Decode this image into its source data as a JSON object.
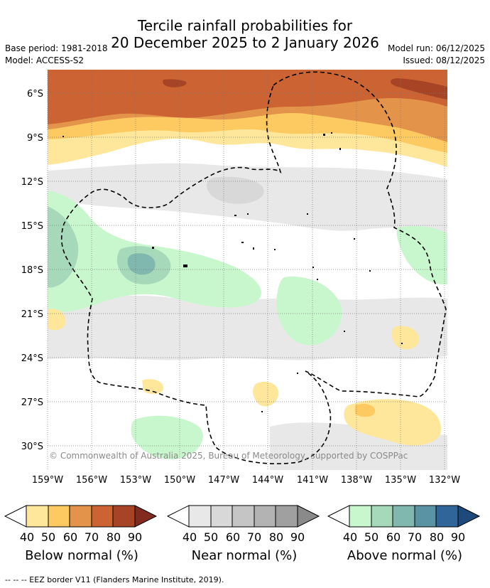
{
  "header": {
    "title_line1": "Tercile rainfall probabilities for",
    "title_line2": "20 December 2025 to 2 January 2026",
    "base_period": "Base period: 1981-2018",
    "model": "Model: ACCESS-S2",
    "model_run": "Model run: 06/12/2025",
    "issued": "Issued: 08/12/2025"
  },
  "map": {
    "lat_labels": [
      "6°S",
      "9°S",
      "12°S",
      "15°S",
      "18°S",
      "21°S",
      "24°S",
      "27°S",
      "30°S"
    ],
    "lon_labels": [
      "159°W",
      "156°W",
      "153°W",
      "150°W",
      "147°W",
      "144°W",
      "141°W",
      "138°W",
      "135°W",
      "132°W"
    ],
    "credit": "© Commonwealth of Australia 2025, Bureau of Meteorology, supported by COSPPac"
  },
  "legends": [
    {
      "title": "Below normal (%)",
      "ticks": [
        "40",
        "50",
        "60",
        "70",
        "80",
        "90"
      ],
      "colors": [
        "#fee79a",
        "#fdc961",
        "#e4934a",
        "#cb6432",
        "#a84426",
        "#832a1e"
      ]
    },
    {
      "title": "Near normal (%)",
      "ticks": [
        "40",
        "50",
        "60",
        "70",
        "80",
        "90"
      ],
      "colors": [
        "#e8e8e8",
        "#d8d8d8",
        "#c5c5c5",
        "#b3b3b3",
        "#a0a0a0",
        "#8a8a8a"
      ]
    },
    {
      "title": "Above normal (%)",
      "ticks": [
        "40",
        "50",
        "60",
        "70",
        "80",
        "90"
      ],
      "colors": [
        "#c9f7cd",
        "#a6d9b9",
        "#80b8b0",
        "#5a94a2",
        "#2f6599",
        "#1d4a7a"
      ]
    }
  ],
  "footer": "--  --  -- EEZ border V11 (Flanders Marine Institute, 2019)."
}
